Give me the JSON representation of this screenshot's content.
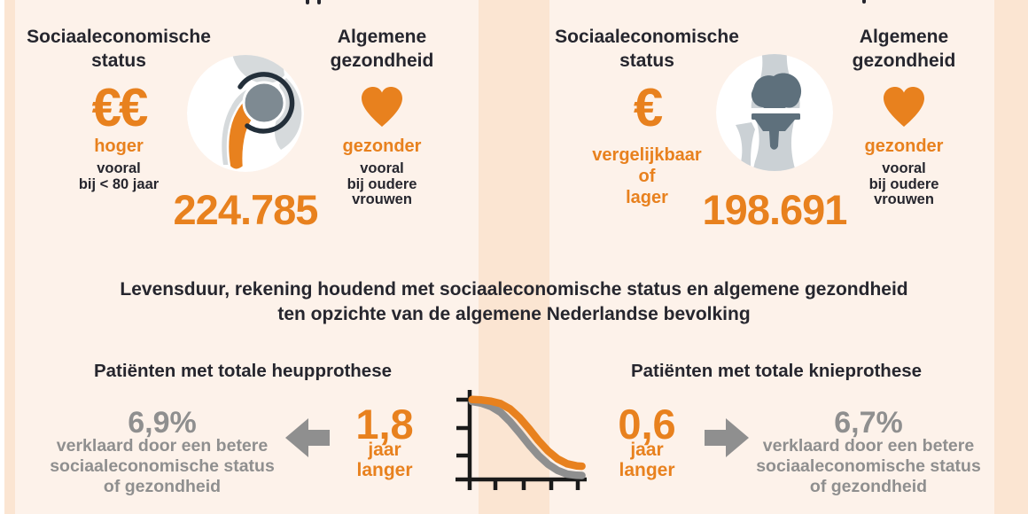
{
  "colors": {
    "accent_orange": "#E8811E",
    "text_dark": "#26262E",
    "text_gray": "#8F8F8F",
    "panel_background": "#FDF2EA",
    "band_background": "#FBE5D2",
    "bone_light_gray": "#CFD4D7",
    "implant_ball_gray": "#7E8A92",
    "implant_slate": "#5E707C",
    "socket_arc_dark": "#232F3A",
    "axis_black": "#1A1A1A"
  },
  "panels": {
    "hip": {
      "ses": {
        "title": [
          "Sociaaleconomische",
          "status"
        ],
        "symbol": "€€",
        "verdict": [
          "hoger"
        ],
        "note": [
          "vooral",
          "bij < 80 jaar"
        ]
      },
      "count": "224.785",
      "health": {
        "title": [
          "Algemene",
          "gezondheid"
        ],
        "verdict": [
          "gezonder"
        ],
        "note": [
          "vooral",
          "bij oudere",
          "vrouwen"
        ]
      }
    },
    "knee": {
      "ses": {
        "title": [
          "Sociaaleconomische",
          "status"
        ],
        "symbol": "€",
        "verdict": [
          "vergelijkbaar",
          "of",
          "lager"
        ],
        "note": []
      },
      "count": "198.691",
      "health": {
        "title": [
          "Algemene",
          "gezondheid"
        ],
        "verdict": [
          "gezonder"
        ],
        "note": [
          "vooral",
          "bij oudere",
          "vrouwen"
        ]
      }
    }
  },
  "lifespan": {
    "title": [
      "Levensduur, rekening houdend met sociaaleconomische status en algemene gezondheid",
      "ten opzichte van de algemene Nederlandse bevolking"
    ],
    "hip": {
      "heading": "Patiënten met totale heupprothese",
      "percent": "6,9%",
      "percent_note": [
        "verklaard door een betere",
        "sociaaleconomische status",
        "of gezondheid"
      ],
      "years": "1,8",
      "years_note": [
        "jaar",
        "langer"
      ]
    },
    "knee": {
      "heading": "Patiënten met totale knieprothese",
      "percent": "6,7%",
      "percent_note": [
        "verklaard door een betere",
        "sociaaleconomische status",
        "of gezondheid"
      ],
      "years": "0,6",
      "years_note": [
        "jaar",
        "langer"
      ]
    }
  },
  "chart_data": {
    "type": "line",
    "title": "",
    "xlabel": "",
    "ylabel": "",
    "axes_labeled": false,
    "description": "Stylized unlabeled survival curves: orange curve (prosthesis patients) lies above and right of the gray reference curve, both sigmoid-shaped declining from ~1.0 to near 0.",
    "x_range": [
      0,
      1
    ],
    "y_range": [
      0,
      1
    ],
    "series": [
      {
        "name": "gray-reference-curve",
        "color": "#8F8F8F",
        "points": [
          [
            0.02,
            0.945
          ],
          [
            0.1,
            0.925
          ],
          [
            0.18,
            0.885
          ],
          [
            0.26,
            0.815
          ],
          [
            0.34,
            0.7
          ],
          [
            0.42,
            0.565
          ],
          [
            0.5,
            0.42
          ],
          [
            0.58,
            0.29
          ],
          [
            0.66,
            0.185
          ],
          [
            0.74,
            0.11
          ],
          [
            0.82,
            0.065
          ],
          [
            0.9,
            0.05
          ],
          [
            0.945,
            0.048
          ]
        ]
      },
      {
        "name": "orange-patient-curve",
        "color": "#E8811E",
        "points": [
          [
            0.02,
            0.97
          ],
          [
            0.1,
            0.965
          ],
          [
            0.18,
            0.95
          ],
          [
            0.26,
            0.92
          ],
          [
            0.34,
            0.855
          ],
          [
            0.42,
            0.75
          ],
          [
            0.5,
            0.615
          ],
          [
            0.58,
            0.47
          ],
          [
            0.66,
            0.345
          ],
          [
            0.74,
            0.25
          ],
          [
            0.82,
            0.19
          ],
          [
            0.9,
            0.165
          ],
          [
            0.945,
            0.16
          ]
        ]
      }
    ]
  }
}
